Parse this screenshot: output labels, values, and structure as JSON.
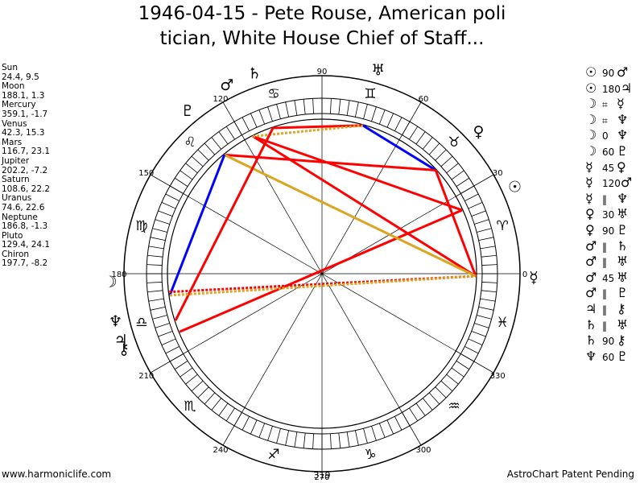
{
  "title_line1": "1946-04-15 - Pete Rouse, American poli",
  "title_line2": "tician, White House Chief of Staff...",
  "footer": {
    "left": "www.harmoniclife.com",
    "center": "319",
    "right": "AstroChart Patent Pending"
  },
  "colors": {
    "conjunction": "#0000ff",
    "opposition": "#ff0000",
    "square": "#ff0000",
    "trine": "#ff0000",
    "sextile": "#ff0000",
    "semisquare": "#ff0000",
    "quincunx": "#daa520",
    "parallel": "#ff0000",
    "contraparallel": "#daa520"
  },
  "chart_data": {
    "type": "astrological-wheel",
    "degree_labels": [
      "90",
      "60",
      "30",
      "0",
      "330",
      "300",
      "270",
      "240",
      "210",
      "180",
      "150",
      "120"
    ],
    "zodiac_signs": [
      {
        "name": "aries",
        "glyph": "♈"
      },
      {
        "name": "taurus",
        "glyph": "♉"
      },
      {
        "name": "gemini",
        "glyph": "♊"
      },
      {
        "name": "cancer",
        "glyph": "♋"
      },
      {
        "name": "leo",
        "glyph": "♌"
      },
      {
        "name": "virgo",
        "glyph": "♍"
      },
      {
        "name": "libra",
        "glyph": "♎"
      },
      {
        "name": "scorpio",
        "glyph": "♏"
      },
      {
        "name": "sagittarius",
        "glyph": "♐"
      },
      {
        "name": "capricorn",
        "glyph": "♑"
      },
      {
        "name": "aquarius",
        "glyph": "♒"
      },
      {
        "name": "pisces",
        "glyph": "♓"
      }
    ],
    "planets": [
      {
        "name": "Sun",
        "glyph": "☉",
        "lon": 24.4,
        "decl": 9.5,
        "coords": "24.4, 9.5"
      },
      {
        "name": "Moon",
        "glyph": "☽",
        "lon": 188.1,
        "decl": 1.3,
        "coords": "188.1, 1.3"
      },
      {
        "name": "Mercury",
        "glyph": "☿",
        "lon": 359.1,
        "decl": -1.7,
        "coords": "359.1, -1.7"
      },
      {
        "name": "Venus",
        "glyph": "♀",
        "lon": 42.3,
        "decl": 15.3,
        "coords": "42.3, 15.3"
      },
      {
        "name": "Mars",
        "glyph": "♂",
        "lon": 116.7,
        "decl": 23.1,
        "coords": "116.7, 23.1"
      },
      {
        "name": "Jupiter",
        "glyph": "♃",
        "lon": 202.2,
        "decl": -7.2,
        "coords": "202.2, -7.2"
      },
      {
        "name": "Saturn",
        "glyph": "♄",
        "lon": 108.6,
        "decl": 22.2,
        "coords": "108.6, 22.2"
      },
      {
        "name": "Uranus",
        "glyph": "♅",
        "lon": 74.6,
        "decl": 22.6,
        "coords": "74.6, 22.6"
      },
      {
        "name": "Neptune",
        "glyph": "♆",
        "lon": 186.8,
        "decl": -1.3,
        "coords": "186.8, -1.3"
      },
      {
        "name": "Pluto",
        "glyph": "♇",
        "lon": 129.4,
        "decl": 24.1,
        "coords": "129.4, 24.1"
      },
      {
        "name": "Chiron",
        "glyph": "⚷",
        "lon": 197.7,
        "decl": -8.2,
        "coords": "197.7, -8.2"
      }
    ],
    "aspects": [
      {
        "p1": "Sun",
        "g1": "☉",
        "sym": "90",
        "p2": "Mars",
        "g2": "♂",
        "type": "square"
      },
      {
        "p1": "Sun",
        "g1": "☉",
        "sym": "180",
        "p2": "Jupiter",
        "g2": "♃",
        "type": "opposition"
      },
      {
        "p1": "Moon",
        "g1": "☽",
        "sym": "⌗",
        "p2": "Mercury",
        "g2": "☿",
        "type": "parallel"
      },
      {
        "p1": "Moon",
        "g1": "☽",
        "sym": "⌗",
        "p2": "Neptune",
        "g2": "♆",
        "type": "parallel"
      },
      {
        "p1": "Moon",
        "g1": "☽",
        "sym": "0",
        "p2": "Neptune",
        "g2": "♆",
        "type": "conjunction"
      },
      {
        "p1": "Moon",
        "g1": "☽",
        "sym": "60",
        "p2": "Pluto",
        "g2": "♇",
        "type": "sextile"
      },
      {
        "p1": "Mercury",
        "g1": "☿",
        "sym": "45",
        "p2": "Venus",
        "g2": "♀",
        "type": "semisquare"
      },
      {
        "p1": "Mercury",
        "g1": "☿",
        "sym": "120",
        "p2": "Mars",
        "g2": "♂",
        "type": "trine"
      },
      {
        "p1": "Mercury",
        "g1": "☿",
        "sym": "‖",
        "p2": "Neptune",
        "g2": "♆",
        "type": "parallel"
      },
      {
        "p1": "Venus",
        "g1": "♀",
        "sym": "30",
        "p2": "Uranus",
        "g2": "♅",
        "type": "semisextile"
      },
      {
        "p1": "Venus",
        "g1": "♀",
        "sym": "90",
        "p2": "Pluto",
        "g2": "♇",
        "type": "square"
      },
      {
        "p1": "Mars",
        "g1": "♂",
        "sym": "‖",
        "p2": "Saturn",
        "g2": "♄",
        "type": "parallel"
      },
      {
        "p1": "Mars",
        "g1": "♂",
        "sym": "‖",
        "p2": "Uranus",
        "g2": "♅",
        "type": "parallel"
      },
      {
        "p1": "Mars",
        "g1": "♂",
        "sym": "45",
        "p2": "Uranus",
        "g2": "♅",
        "type": "semisquare"
      },
      {
        "p1": "Mars",
        "g1": "♂",
        "sym": "‖",
        "p2": "Pluto",
        "g2": "♇",
        "type": "parallel"
      },
      {
        "p1": "Jupiter",
        "g1": "♃",
        "sym": "‖",
        "p2": "Chiron",
        "g2": "⚷",
        "type": "parallel"
      },
      {
        "p1": "Saturn",
        "g1": "♄",
        "sym": "‖",
        "p2": "Uranus",
        "g2": "♅",
        "type": "parallel"
      },
      {
        "p1": "Saturn",
        "g1": "♄",
        "sym": "90",
        "p2": "Chiron",
        "g2": "⚷",
        "type": "square"
      },
      {
        "p1": "Neptune",
        "g1": "♆",
        "sym": "60",
        "p2": "Pluto",
        "g2": "♇",
        "type": "sextile"
      }
    ],
    "chart_lines": [
      {
        "from": "Saturn",
        "to": "Uranus",
        "color": "#ff0000",
        "style": "solid"
      },
      {
        "from": "Venus",
        "to": "Uranus",
        "color": "#0000ff",
        "style": "solid"
      },
      {
        "from": "Venus",
        "to": "Pluto",
        "color": "#ff0000",
        "style": "solid"
      },
      {
        "from": "Venus",
        "to": "Mercury",
        "color": "#ff0000",
        "style": "solid"
      },
      {
        "from": "Sun",
        "to": "Mars",
        "color": "#ff0000",
        "style": "solid"
      },
      {
        "from": "Sun",
        "to": "Jupiter",
        "color": "#ff0000",
        "style": "solid"
      },
      {
        "from": "Mercury",
        "to": "Mars",
        "color": "#ff0000",
        "style": "solid"
      },
      {
        "from": "Mercury",
        "to": "Pluto",
        "color": "#daa520",
        "style": "solid"
      },
      {
        "from": "Mars",
        "to": "Uranus",
        "color": "#daa520",
        "style": "dotted"
      },
      {
        "from": "Saturn",
        "to": "Chiron",
        "color": "#ff0000",
        "style": "solid"
      },
      {
        "from": "Moon",
        "to": "Pluto",
        "color": "#0000ff",
        "style": "solid"
      },
      {
        "from": "Neptune",
        "to": "Mercury",
        "color": "#ff0000",
        "style": "dotted"
      },
      {
        "from": "Moon",
        "to": "Mercury",
        "color": "#daa520",
        "style": "dotted"
      }
    ]
  }
}
